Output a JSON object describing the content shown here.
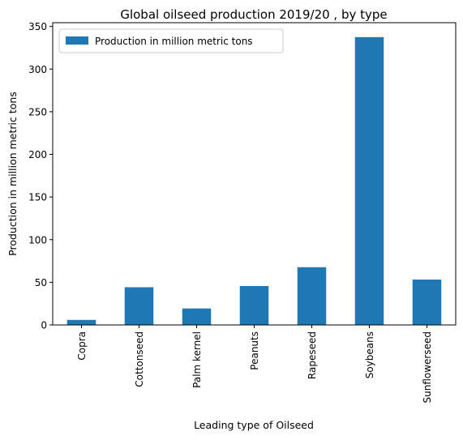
{
  "chart_data": {
    "type": "bar",
    "title": "Global oilseed production 2019/20 , by type",
    "xlabel": "Leading type of Oilseed",
    "ylabel": "Production in million metric tons",
    "categories": [
      "Copra",
      "Cottonseed",
      "Palm kernel",
      "Peanuts",
      "Rapeseed",
      "Soybeans",
      "Sunflowerseed"
    ],
    "series": [
      {
        "name": "Production in million metric tons",
        "values": [
          5.9,
          44.2,
          19.3,
          45.6,
          67.7,
          337.5,
          53.2
        ]
      }
    ],
    "yticks": [
      0,
      50,
      100,
      150,
      200,
      250,
      300,
      350
    ],
    "ylim": [
      0,
      354.4
    ],
    "grid": false,
    "legend_position": "top-left",
    "bar_color": "#1f77b4"
  }
}
